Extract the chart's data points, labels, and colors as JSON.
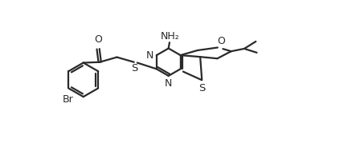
{
  "background_color": "#ffffff",
  "line_color": "#2a2a2a",
  "line_width": 1.6,
  "label_fontsize": 9.0,
  "figsize": [
    4.53,
    1.89
  ],
  "dpi": 100,
  "xlim": [
    -1,
    10
  ],
  "ylim": [
    -0.5,
    2.2
  ]
}
